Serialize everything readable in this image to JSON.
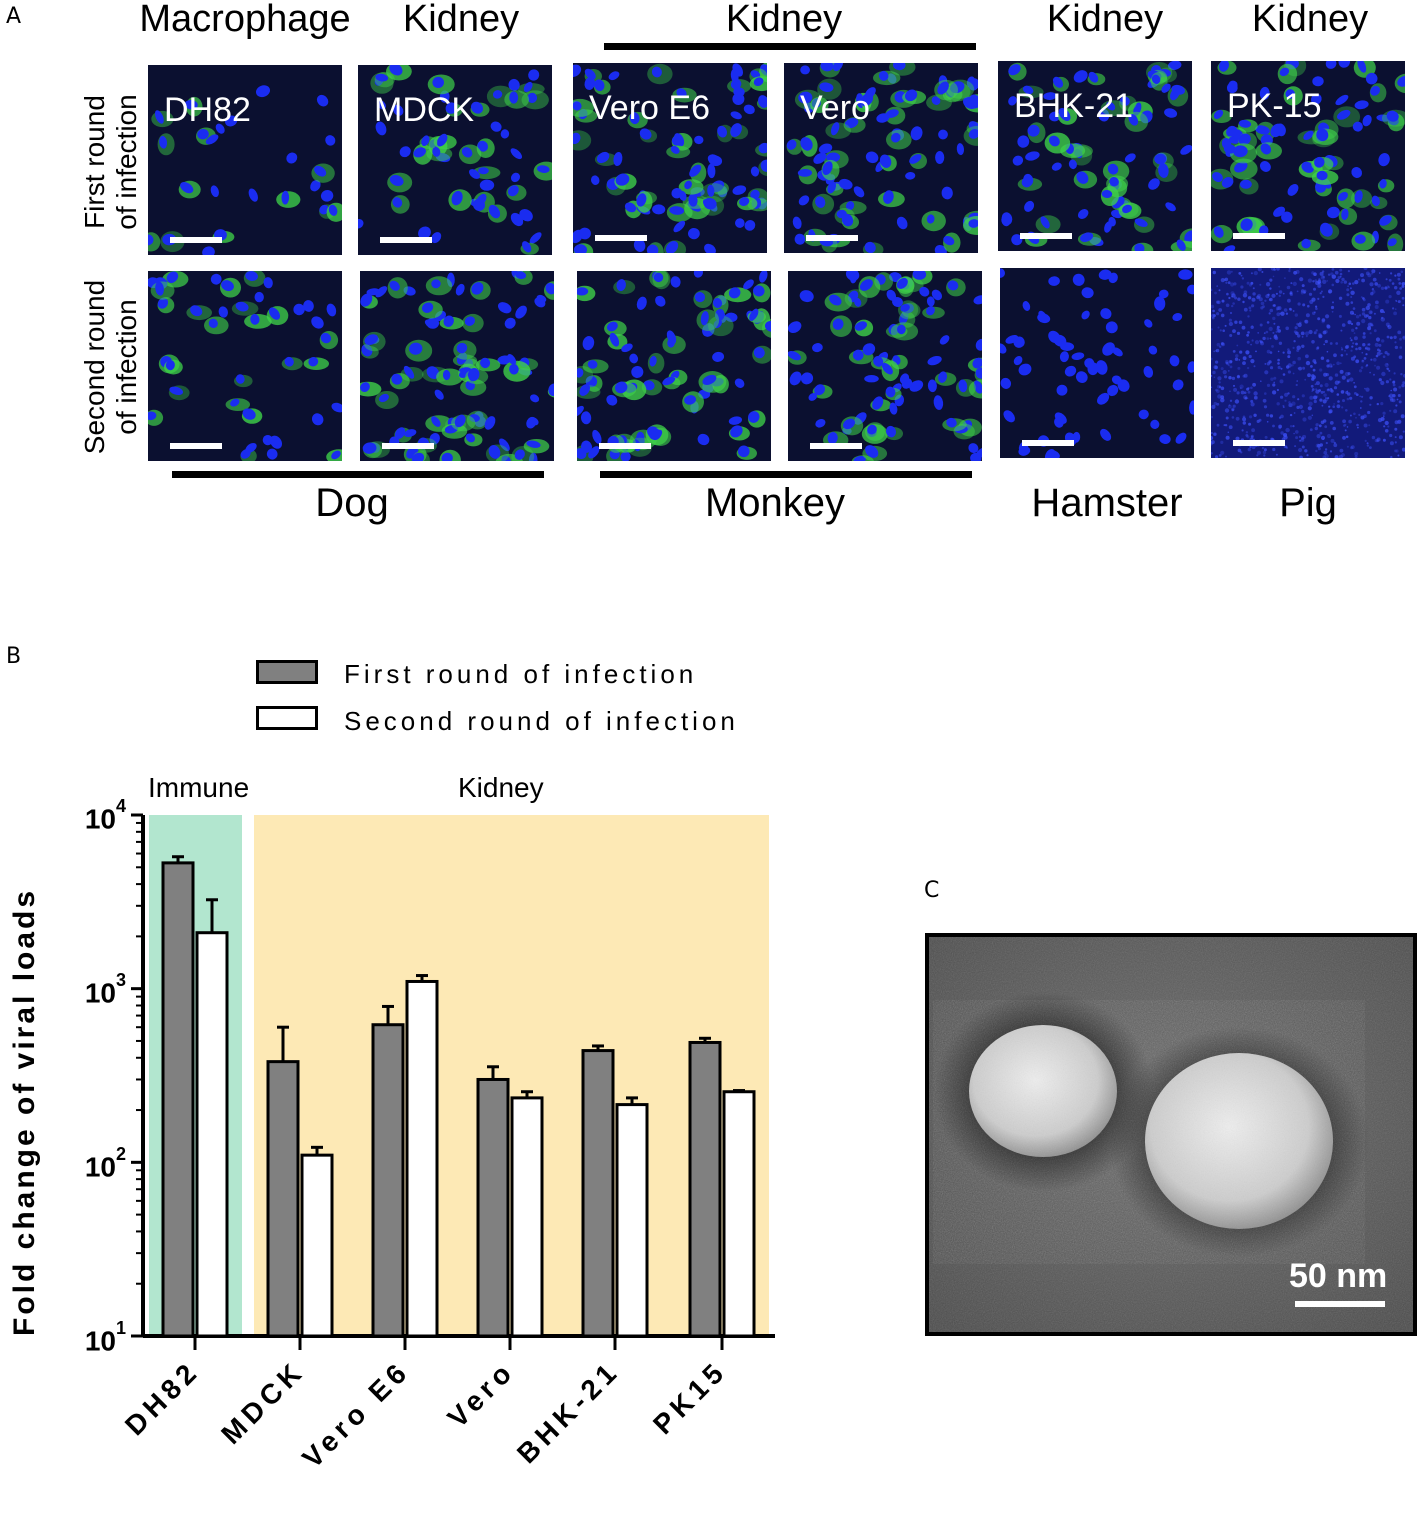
{
  "panels": {
    "a": "A",
    "b": "B",
    "c": "C"
  },
  "panel_a": {
    "headers": [
      "Macrophage",
      "Kidney",
      "Kidney",
      "Kidney",
      "Kidney"
    ],
    "row_labels": [
      [
        "First round",
        "of infection"
      ],
      [
        "Second round",
        "of infection"
      ]
    ],
    "cell_lines": [
      "DH82",
      "MDCK",
      "Vero E6",
      "Vero",
      "BHK-21",
      "PK-15"
    ],
    "species": [
      "Dog",
      "Monkey",
      "Hamster",
      "Pig"
    ],
    "colors": {
      "nuclei": "#1a2cf0",
      "virus": "#3fd34a",
      "background": "#0b1030"
    }
  },
  "panel_b": {
    "legend": [
      "First round of infection",
      "Second round of infection"
    ],
    "group_labels": [
      "Immune",
      "Kidney"
    ],
    "ylabel": "Fold change of viral loads",
    "yticks": [
      {
        "base": "10",
        "exp": "4"
      },
      {
        "base": "10",
        "exp": "3"
      },
      {
        "base": "10",
        "exp": "2"
      },
      {
        "base": "10",
        "exp": "1"
      }
    ],
    "colors": {
      "first": "#808080",
      "second": "#ffffff",
      "immune_bg": "#b2e6cf",
      "kidney_bg": "#fde9b5"
    }
  },
  "chart_data": {
    "type": "bar",
    "categories": [
      "DH82",
      "MDCK",
      "Vero E6",
      "Vero",
      "BHK-21",
      "PK15"
    ],
    "series": [
      {
        "name": "First round of infection",
        "values": [
          5300,
          380,
          620,
          300,
          440,
          490
        ],
        "errors": [
          450,
          220,
          170,
          55,
          28,
          28
        ]
      },
      {
        "name": "Second round of infection",
        "values": [
          2100,
          110,
          1100,
          235,
          215,
          255
        ],
        "errors": [
          1150,
          12,
          90,
          20,
          20,
          4
        ]
      }
    ],
    "ylabel": "Fold change of viral loads",
    "yscale": "log",
    "ylim": [
      10,
      10000
    ],
    "group_bands": [
      {
        "label": "Immune",
        "categories": [
          "DH82"
        ]
      },
      {
        "label": "Kidney",
        "categories": [
          "MDCK",
          "Vero E6",
          "Vero",
          "BHK-21",
          "PK15"
        ]
      }
    ]
  },
  "panel_c": {
    "scale_label": "50 nm"
  }
}
